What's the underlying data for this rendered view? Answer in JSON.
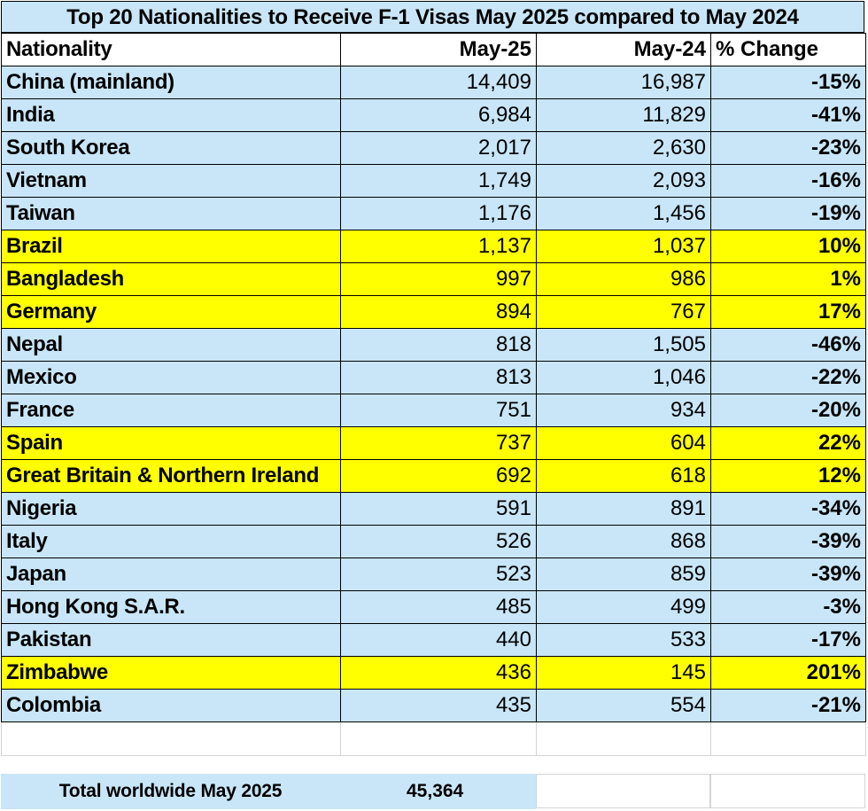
{
  "title": "Top 20 Nationalities to Receive F-1 Visas May 2025 compared to May 2024",
  "headers": {
    "nationality": "Nationality",
    "may25": "May-25",
    "may24": "May-24",
    "change": "% Change"
  },
  "rows": [
    {
      "nationality": "China (mainland)",
      "may25": "14,409",
      "may24": "16,987",
      "change": "-15%",
      "highlight": "blue"
    },
    {
      "nationality": "India",
      "may25": "6,984",
      "may24": "11,829",
      "change": "-41%",
      "highlight": "blue"
    },
    {
      "nationality": "South Korea",
      "may25": "2,017",
      "may24": "2,630",
      "change": "-23%",
      "highlight": "blue"
    },
    {
      "nationality": "Vietnam",
      "may25": "1,749",
      "may24": "2,093",
      "change": "-16%",
      "highlight": "blue"
    },
    {
      "nationality": "Taiwan",
      "may25": "1,176",
      "may24": "1,456",
      "change": "-19%",
      "highlight": "blue"
    },
    {
      "nationality": "Brazil",
      "may25": "1,137",
      "may24": "1,037",
      "change": "10%",
      "highlight": "yellow"
    },
    {
      "nationality": "Bangladesh",
      "may25": "997",
      "may24": "986",
      "change": "1%",
      "highlight": "yellow"
    },
    {
      "nationality": "Germany",
      "may25": "894",
      "may24": "767",
      "change": "17%",
      "highlight": "yellow"
    },
    {
      "nationality": "Nepal",
      "may25": "818",
      "may24": "1,505",
      "change": "-46%",
      "highlight": "blue"
    },
    {
      "nationality": "Mexico",
      "may25": "813",
      "may24": "1,046",
      "change": "-22%",
      "highlight": "blue"
    },
    {
      "nationality": "France",
      "may25": "751",
      "may24": "934",
      "change": "-20%",
      "highlight": "blue"
    },
    {
      "nationality": "Spain",
      "may25": "737",
      "may24": "604",
      "change": "22%",
      "highlight": "yellow"
    },
    {
      "nationality": "Great Britain & Northern Ireland",
      "may25": "692",
      "may24": "618",
      "change": "12%",
      "highlight": "yellow"
    },
    {
      "nationality": "Nigeria",
      "may25": "591",
      "may24": "891",
      "change": "-34%",
      "highlight": "blue"
    },
    {
      "nationality": "Italy",
      "may25": "526",
      "may24": "868",
      "change": "-39%",
      "highlight": "blue"
    },
    {
      "nationality": "Japan",
      "may25": "523",
      "may24": "859",
      "change": "-39%",
      "highlight": "blue"
    },
    {
      "nationality": "Hong Kong S.A.R.",
      "may25": "485",
      "may24": "499",
      "change": "-3%",
      "highlight": "blue"
    },
    {
      "nationality": "Pakistan",
      "may25": "440",
      "may24": "533",
      "change": "-17%",
      "highlight": "blue"
    },
    {
      "nationality": "Zimbabwe",
      "may25": "436",
      "may24": "145",
      "change": "201%",
      "highlight": "yellow"
    },
    {
      "nationality": "Colombia",
      "may25": "435",
      "may24": "554",
      "change": "-21%",
      "highlight": "blue"
    }
  ],
  "total": {
    "label": "Total worldwide May 2025",
    "value": "45,364"
  },
  "colors": {
    "blue_fill": "#c8e6f7",
    "yellow_fill": "#ffff00"
  }
}
